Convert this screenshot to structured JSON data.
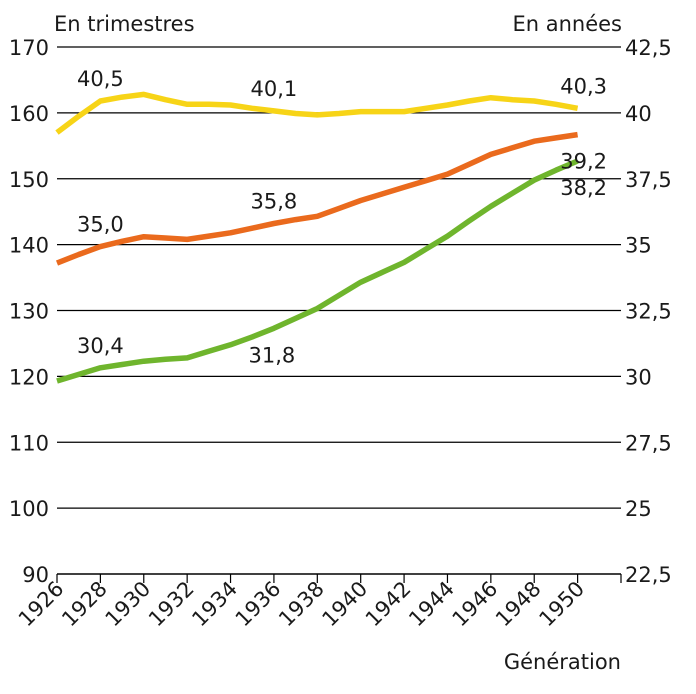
{
  "chart_data": {
    "type": "line",
    "ylabel_left": "En trimestres",
    "ylabel_right": "En années",
    "xlabel": "Génération",
    "x": [
      1926,
      1927,
      1928,
      1929,
      1930,
      1931,
      1932,
      1933,
      1934,
      1935,
      1936,
      1937,
      1938,
      1939,
      1940,
      1941,
      1942,
      1943,
      1944,
      1945,
      1946,
      1947,
      1948,
      1949,
      1950
    ],
    "x_ticks": [
      "1926",
      "1928",
      "1930",
      "1932",
      "1934",
      "1936",
      "1938",
      "1940",
      "1942",
      "1944",
      "1946",
      "1948",
      "1950"
    ],
    "ylim_left": [
      90,
      170
    ],
    "ylim_right": [
      22.5,
      42.5
    ],
    "yticks_left": [
      "170",
      "160",
      "150",
      "140",
      "130",
      "120",
      "110",
      "100",
      "90"
    ],
    "yticks_right": [
      "42,5",
      "40",
      "37,5",
      "35",
      "32,5",
      "30",
      "27,5",
      "25",
      "22,5"
    ],
    "grid": "horizontal",
    "series": [
      {
        "color": "#f7d417",
        "values": [
          157.0,
          159.5,
          161.8,
          162.4,
          162.8,
          162.0,
          161.3,
          161.3,
          161.2,
          160.7,
          160.3,
          159.9,
          159.7,
          159.9,
          160.2,
          160.2,
          160.2,
          160.7,
          161.2,
          161.8,
          162.3,
          162.0,
          161.8,
          161.3,
          160.7
        ]
      },
      {
        "color": "#ea6a1d",
        "values": [
          137.2,
          138.5,
          139.7,
          140.5,
          141.2,
          141.0,
          140.8,
          141.3,
          141.8,
          142.5,
          143.2,
          143.8,
          144.3,
          145.5,
          146.7,
          147.7,
          148.7,
          149.7,
          150.7,
          152.2,
          153.7,
          154.7,
          155.7,
          156.2,
          156.7
        ]
      },
      {
        "color": "#6fb52d",
        "values": [
          119.3,
          120.3,
          121.3,
          121.8,
          122.3,
          122.6,
          122.8,
          123.8,
          124.8,
          126.0,
          127.3,
          128.8,
          130.3,
          132.3,
          134.3,
          135.8,
          137.3,
          139.3,
          141.3,
          143.6,
          145.8,
          147.8,
          149.8,
          151.3,
          152.7
        ]
      }
    ],
    "annotations": [
      {
        "text": "40,5",
        "series": 0,
        "x": 1928,
        "pos": "above"
      },
      {
        "text": "40,1",
        "series": 0,
        "x": 1936,
        "pos": "above"
      },
      {
        "text": "40,3",
        "series": 0,
        "x": 1950,
        "pos": "above"
      },
      {
        "text": "35,0",
        "series": 1,
        "x": 1928,
        "pos": "above"
      },
      {
        "text": "35,8",
        "series": 1,
        "x": 1936,
        "pos": "above"
      },
      {
        "text": "39,2",
        "series": 1,
        "x": 1950,
        "pos": "below"
      },
      {
        "text": "30,4",
        "series": 2,
        "x": 1928,
        "pos": "above"
      },
      {
        "text": "31,8",
        "series": 2,
        "x": 1936,
        "pos": "below"
      },
      {
        "text": "38,2",
        "series": 2,
        "x": 1950,
        "pos": "below"
      }
    ]
  }
}
